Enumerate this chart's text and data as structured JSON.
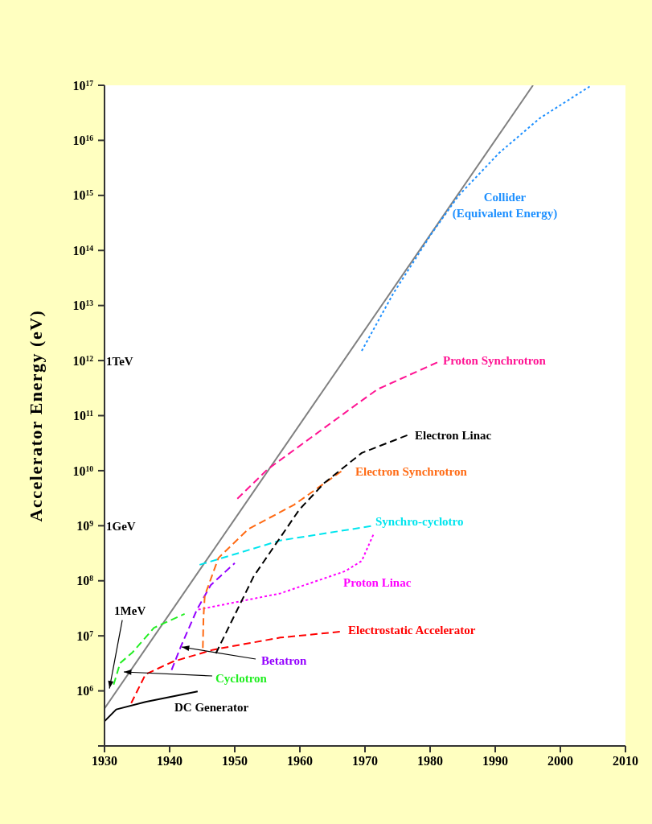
{
  "chart_data": {
    "type": "line",
    "ylabel": "Accelerator Energy (eV)",
    "log": "y",
    "marker": "none",
    "xlim": [
      1930,
      2010
    ],
    "xticks": [
      1930,
      1940,
      1950,
      1960,
      1970,
      1980,
      1990,
      2000,
      2010
    ],
    "ylim": [
      100000,
      100000000000000000
    ],
    "yticks": [
      {
        "value": 100000,
        "label": null
      },
      {
        "value": 1000000,
        "label": "10$^{6}$"
      },
      {
        "value": 10000000,
        "label": "10$^{7}$"
      },
      {
        "value": 100000000,
        "label": "10$^{8}$"
      },
      {
        "value": 1000000000,
        "label": "10$^{9}$"
      },
      {
        "value": 10000000000,
        "label": "10$^{10}$"
      },
      {
        "value": 100000000000,
        "label": "10$^{11}$"
      },
      {
        "value": 1000000000000,
        "label": "10$^{12}$"
      },
      {
        "value": 10000000000000,
        "label": "10$^{13}$"
      },
      {
        "value": 100000000000000,
        "label": "10$^{14}$"
      },
      {
        "value": 1000000000000000,
        "label": "10$^{15}$"
      },
      {
        "value": 10000000000000000,
        "label": "10$^{16}$"
      },
      {
        "value": 100000000000000000,
        "label": "10$^{17}$"
      }
    ],
    "annotations": [
      "1TeV",
      "1GeV",
      {
        "text": "1MeV",
        "x": 1931,
        "y": 1000000
      }
    ],
    "series": [
      {
        "color": "#808080",
        "line_style": "solid",
        "x": [
          1930,
          1995.8
        ],
        "values": [
          480000,
          100000000000000000
        ]
      },
      {
        "name": "DC Generator",
        "color": "#000000",
        "line_style": "solid",
        "x": [
          1930,
          1931.8,
          1936.3,
          1944.3
        ],
        "values": [
          280000,
          460000,
          630000,
          980000
        ]
      },
      {
        "name": "Cyclotron",
        "color": "#22ee22",
        "line_style": "dashed",
        "x": [
          1931.4,
          1932.4,
          1934.3,
          1937.6,
          1942.3
        ],
        "values": [
          1300000,
          3200000,
          5000000,
          14000000,
          25000000
        ]
      },
      {
        "name": "Betatron",
        "color": "#9400ff",
        "line_style": "dashed",
        "x": [
          1940.3,
          1941.7,
          1944.2,
          1946.3,
          1950.0
        ],
        "values": [
          2400000,
          6300000,
          30000000,
          83000000,
          210000000
        ]
      },
      {
        "name": "Electrostatic Accelerator",
        "color": "#ff0000",
        "line_style": "dashed",
        "x": [
          1934.1,
          1936.3,
          1940.5,
          1946.7,
          1957.0,
          1966.6
        ],
        "values": [
          600000,
          2000000,
          3400000,
          5600000,
          9300000,
          12000000
        ]
      },
      {
        "name": "Proton Linac",
        "color": "#ff00ff",
        "line_style": "dotted",
        "x": [
          1944.4,
          1957.0,
          1967.0,
          1969.5,
          1971.3
        ],
        "values": [
          30000000,
          59000000,
          150000000,
          230000000,
          700000000
        ]
      },
      {
        "name": "Synchro-cyclotro",
        "color": "#00e5ee",
        "line_style": "dashed",
        "x": [
          1944.6,
          1957.0,
          1971.3
        ],
        "values": [
          195000000,
          540000000,
          1000000000
        ]
      },
      {
        "name": "Electron Synchrotron",
        "color": "#ff6a13",
        "line_style": "dashed",
        "x": [
          1945.1,
          1945.2,
          1945.4,
          1947.5,
          1952.1,
          1959.1,
          1966.4
        ],
        "values": [
          6000000,
          22000000,
          54000000,
          260000000,
          870000000,
          2400000000,
          9800000000
        ]
      },
      {
        "name": "Electron Linac",
        "color": "#000000",
        "line_style": "dashed",
        "x": [
          1947.1,
          1952.9,
          1959.9,
          1963.7,
          1969.5,
          1976.5
        ],
        "values": [
          4800000,
          120000000,
          1950000000,
          5900000000,
          21000000000,
          44000000000
        ]
      },
      {
        "name": "Proton Synchrotron",
        "color": "#ff1493",
        "line_style": "dashed",
        "x": [
          1950.4,
          1955.0,
          1969.0,
          1971.9,
          1981.3
        ],
        "values": [
          3100000000,
          10500000000,
          170000000000,
          300000000000,
          950000000000
        ]
      },
      {
        "name": "Collider (Equivalent Energy)",
        "color": "#1e90ff",
        "line_style": "dotted",
        "x": [
          1969.5,
          1974.4,
          1980.2,
          1984.4,
          1990.6,
          1996.8,
          2004.5
        ],
        "values": [
          1500000000000,
          17000000000000,
          200000000000000,
          1000000000000000,
          5900000000000000,
          25000000000000000,
          95000000000000000
        ]
      }
    ]
  }
}
